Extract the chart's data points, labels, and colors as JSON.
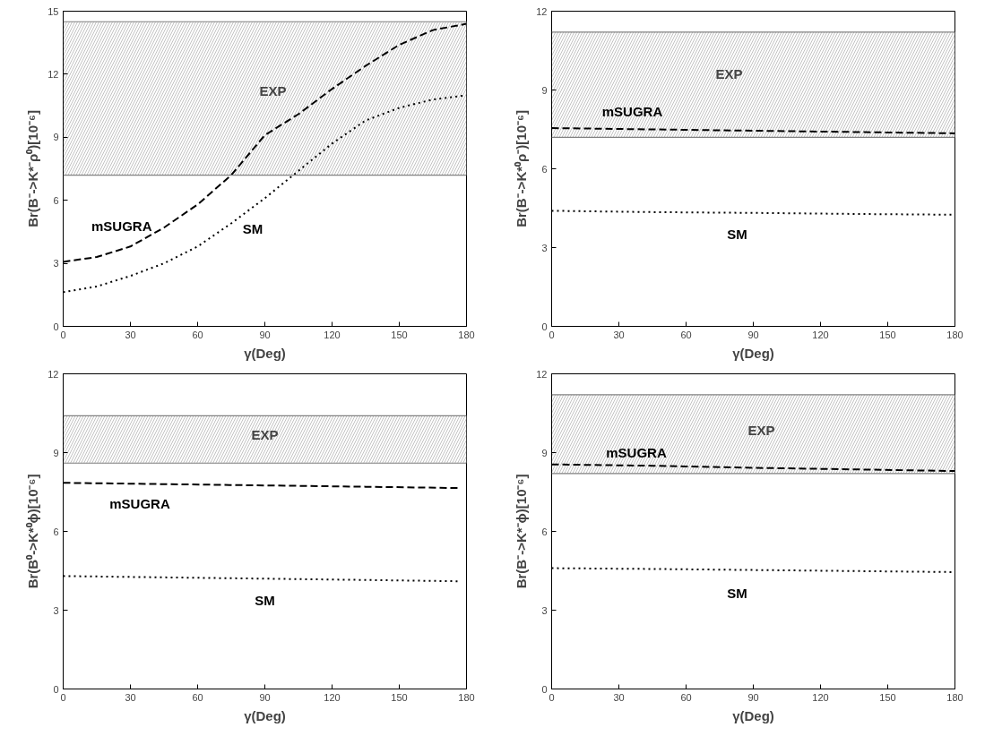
{
  "chart_data": [
    {
      "type": "line",
      "xlabel": "γ(Deg)",
      "ylabel": "Br(B⁻->K*⁻ρ⁰)[10⁻⁶]",
      "xlim": [
        0,
        180
      ],
      "ylim": [
        0,
        15
      ],
      "xticks": [
        0,
        30,
        60,
        90,
        120,
        150,
        180
      ],
      "yticks": [
        0,
        3,
        6,
        9,
        12,
        15
      ],
      "grid": false,
      "x": [
        0,
        15,
        30,
        45,
        60,
        75,
        90,
        105,
        120,
        135,
        150,
        165,
        180
      ],
      "series": [
        {
          "name": "mSUGRA",
          "color": "#000000",
          "line_style": "dashed",
          "values": [
            3.07,
            3.3,
            3.8,
            4.7,
            5.8,
            7.2,
            9.1,
            10.1,
            11.3,
            12.4,
            13.4,
            14.1,
            14.4
          ]
        },
        {
          "name": "SM",
          "color": "#000000",
          "line_style": "dotted",
          "values": [
            1.63,
            1.9,
            2.4,
            3.0,
            3.8,
            4.9,
            6.1,
            7.4,
            8.7,
            9.8,
            10.4,
            10.8,
            11.0
          ]
        }
      ],
      "bands": [
        {
          "axis": "y",
          "from": 7.2,
          "to": 14.5,
          "color": "#808080",
          "label": "EXP"
        }
      ],
      "ref_lines": [
        {
          "axis": "y",
          "value": 7.2,
          "color": "#808080"
        },
        {
          "axis": "y",
          "value": 14.5,
          "color": "#808080"
        }
      ]
    },
    {
      "type": "line",
      "xlabel": "γ(Deg)",
      "ylabel": "Br(B⁻->K*⁰ρ⁻)[10⁻⁶]",
      "xlim": [
        0,
        180
      ],
      "ylim": [
        0,
        12
      ],
      "xticks": [
        0,
        30,
        60,
        90,
        120,
        150,
        180
      ],
      "yticks": [
        0,
        3,
        6,
        9,
        12
      ],
      "grid": false,
      "x": [
        0,
        45,
        90,
        135,
        180
      ],
      "series": [
        {
          "name": "mSUGRA",
          "color": "#000000",
          "line_style": "dashed",
          "values": [
            7.55,
            7.5,
            7.45,
            7.4,
            7.35
          ]
        },
        {
          "name": "SM",
          "color": "#000000",
          "line_style": "dotted",
          "values": [
            4.4,
            4.35,
            4.32,
            4.28,
            4.25
          ]
        }
      ],
      "bands": [
        {
          "axis": "y",
          "from": 7.2,
          "to": 11.2,
          "color": "#808080",
          "label": "EXP"
        }
      ],
      "ref_lines": [
        {
          "axis": "y",
          "value": 7.2,
          "color": "#808080"
        },
        {
          "axis": "y",
          "value": 11.2,
          "color": "#808080"
        }
      ]
    },
    {
      "type": "line",
      "xlabel": "γ(Deg)",
      "ylabel": "Br(B⁰->K*⁰ϕ)[10⁻⁶]",
      "xlim": [
        0,
        180
      ],
      "ylim": [
        0,
        12
      ],
      "xticks": [
        0,
        30,
        60,
        90,
        120,
        150,
        180
      ],
      "yticks": [
        0,
        3,
        6,
        9,
        12
      ],
      "grid": false,
      "x": [
        0,
        45,
        90,
        135,
        177
      ],
      "series": [
        {
          "name": "mSUGRA",
          "color": "#000000",
          "line_style": "dashed",
          "values": [
            7.85,
            7.8,
            7.75,
            7.7,
            7.65
          ]
        },
        {
          "name": "SM",
          "color": "#000000",
          "line_style": "dotted",
          "values": [
            4.3,
            4.25,
            4.2,
            4.15,
            4.1
          ]
        }
      ],
      "bands": [
        {
          "axis": "y",
          "from": 8.6,
          "to": 10.4,
          "color": "#808080",
          "label": "EXP"
        }
      ],
      "ref_lines": [
        {
          "axis": "y",
          "value": 8.6,
          "color": "#808080"
        },
        {
          "axis": "y",
          "value": 10.4,
          "color": "#808080"
        }
      ]
    },
    {
      "type": "line",
      "xlabel": "γ(Deg)",
      "ylabel": "Br(B⁻->K*⁻ϕ)[10⁻⁶]",
      "xlim": [
        0,
        180
      ],
      "ylim": [
        0,
        12
      ],
      "xticks": [
        0,
        30,
        60,
        90,
        120,
        150,
        180
      ],
      "yticks": [
        0,
        3,
        6,
        9,
        12
      ],
      "grid": false,
      "x": [
        0,
        45,
        90,
        135,
        180
      ],
      "series": [
        {
          "name": "mSUGRA",
          "color": "#000000",
          "line_style": "dashed",
          "values": [
            8.55,
            8.5,
            8.42,
            8.36,
            8.3
          ]
        },
        {
          "name": "SM",
          "color": "#000000",
          "line_style": "dotted",
          "values": [
            4.6,
            4.57,
            4.53,
            4.49,
            4.45
          ]
        }
      ],
      "bands": [
        {
          "axis": "y",
          "from": 8.2,
          "to": 11.2,
          "color": "#808080",
          "label": "EXP"
        }
      ],
      "ref_lines": [
        {
          "axis": "y",
          "value": 8.2,
          "color": "#808080"
        },
        {
          "axis": "y",
          "value": 11.2,
          "color": "#808080"
        }
      ]
    }
  ]
}
